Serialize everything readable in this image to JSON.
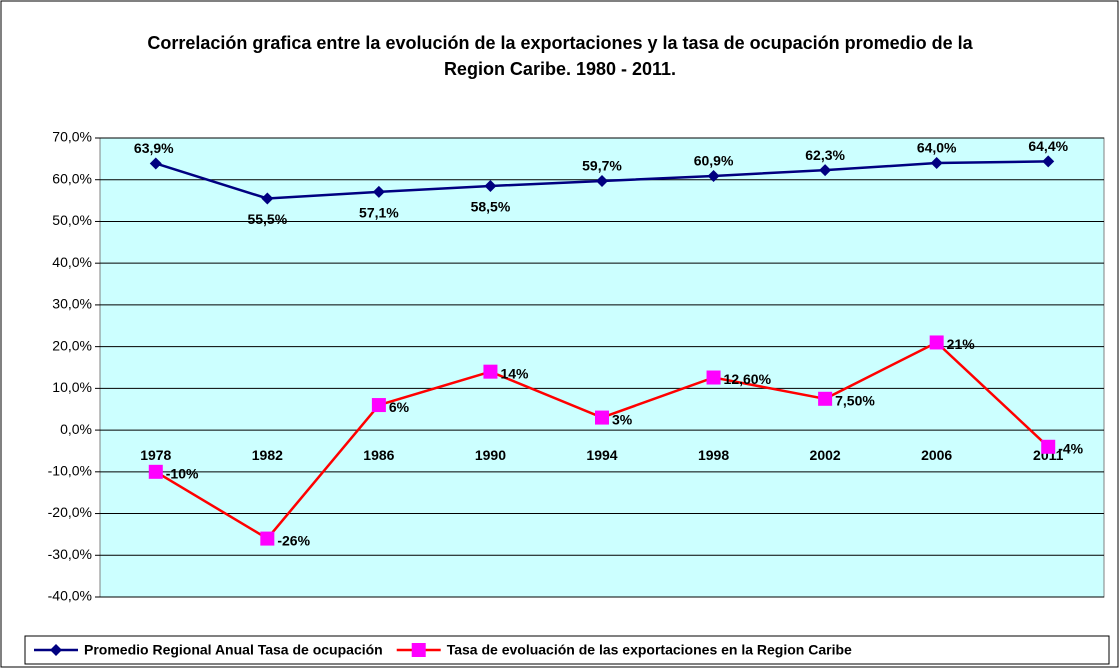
{
  "chart_data": {
    "type": "line",
    "title": "Correlación grafica entre la evolución de la exportaciones y la tasa de ocupación promedio de la Region Caribe. 1980 - 2011.",
    "categories": [
      "1978",
      "1982",
      "1986",
      "1990",
      "1994",
      "1998",
      "2002",
      "2006",
      "2011"
    ],
    "series": [
      {
        "name": "Promedio Regional Anual Tasa de ocupación",
        "color": "#000080",
        "marker": "diamond",
        "values": [
          63.9,
          55.5,
          57.1,
          58.5,
          59.7,
          60.9,
          62.3,
          64.0,
          64.4
        ],
        "value_labels": [
          "63,9%",
          "55,5%",
          "57,1%",
          "58,5%",
          "59,7%",
          "60,9%",
          "62,3%",
          "64,0%",
          "64,4%"
        ]
      },
      {
        "name": "Tasa de evoluación de las exportaciones en la Region Caribe",
        "color": "#ff0000",
        "marker_color": "#ff00ff",
        "marker": "square",
        "values": [
          -10,
          -26,
          6,
          14,
          3,
          12.6,
          7.5,
          21,
          -4
        ],
        "value_labels": [
          "-10%",
          "-26%",
          "6%",
          "14%",
          "3%",
          "12,60%",
          "7,50%",
          "21%",
          "-4%"
        ]
      }
    ],
    "ylim": [
      -40,
      70
    ],
    "yticks": [
      {
        "value": -40,
        "label": "-40,0%"
      },
      {
        "value": -30,
        "label": "-30,0%"
      },
      {
        "value": -20,
        "label": "-20,0%"
      },
      {
        "value": -10,
        "label": "-10,0%"
      },
      {
        "value": 0,
        "label": "0,0%"
      },
      {
        "value": 10,
        "label": "10,0%"
      },
      {
        "value": 20,
        "label": "20,0%"
      },
      {
        "value": 30,
        "label": "30,0%"
      },
      {
        "value": 40,
        "label": "40,0%"
      },
      {
        "value": 50,
        "label": "50,0%"
      },
      {
        "value": 60,
        "label": "60,0%"
      },
      {
        "value": 70,
        "label": "70,0%"
      }
    ],
    "grid": true,
    "legend": "bottom",
    "plot_background": "#ccffff"
  }
}
